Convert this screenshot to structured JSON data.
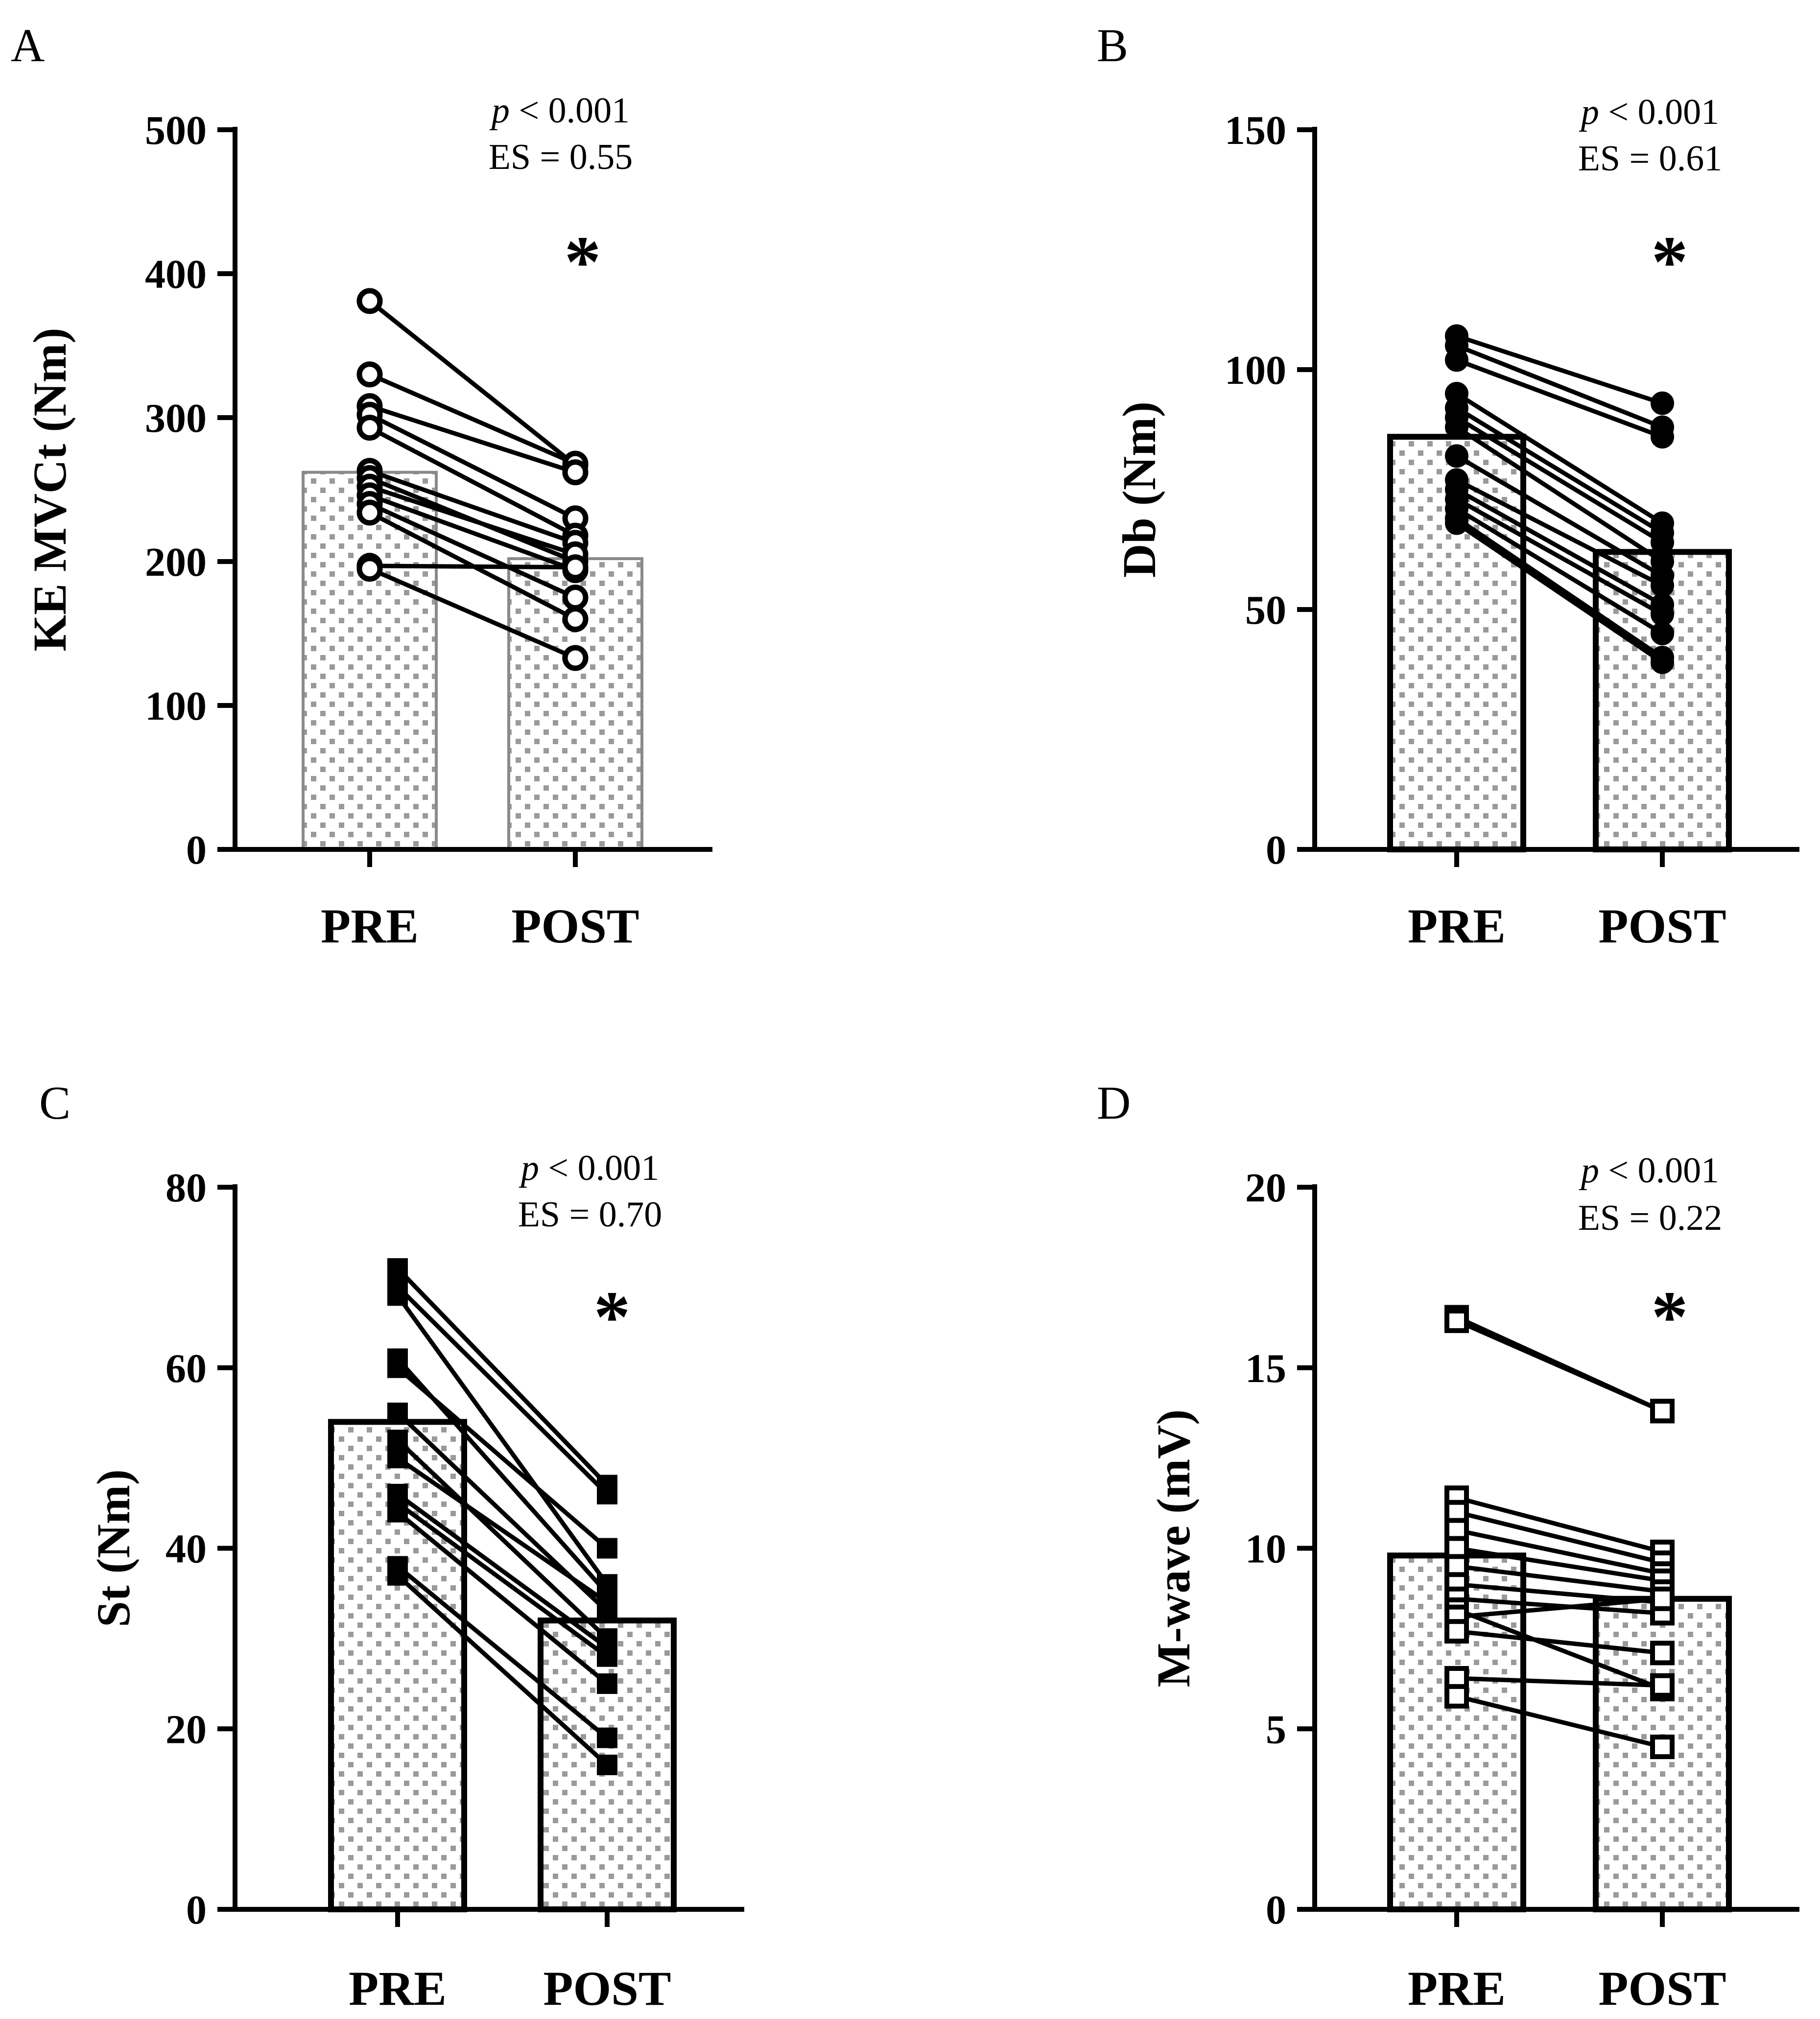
{
  "chart_data": [
    {
      "panel": "A",
      "type": "bar",
      "title": "",
      "xlabel": "",
      "ylabel": "KE MVCt (Nm)",
      "categories": [
        "PRE",
        "POST"
      ],
      "means": [
        262,
        202
      ],
      "ylim": [
        0,
        500
      ],
      "yticks": [
        0,
        100,
        200,
        300,
        400,
        500
      ],
      "marker": "open-circle",
      "bar_style": "grey",
      "annotation": {
        "p_symbol": "p",
        "p_text": " < 0.001",
        "es_text": "ES = 0.55",
        "sig": "*"
      },
      "pairs": [
        [
          381,
          267
        ],
        [
          330,
          268
        ],
        [
          308,
          262
        ],
        [
          302,
          230
        ],
        [
          293,
          218
        ],
        [
          263,
          213
        ],
        [
          258,
          200
        ],
        [
          252,
          205
        ],
        [
          246,
          194
        ],
        [
          240,
          175
        ],
        [
          234,
          160
        ],
        [
          197,
          196
        ],
        [
          195,
          133
        ]
      ]
    },
    {
      "panel": "B",
      "type": "bar",
      "title": "",
      "xlabel": "",
      "ylabel": "Db (Nm)",
      "categories": [
        "PRE",
        "POST"
      ],
      "means": [
        86,
        62
      ],
      "ylim": [
        0,
        150
      ],
      "yticks": [
        0,
        50,
        100,
        150
      ],
      "marker": "filled-circle",
      "bar_style": "black",
      "annotation": {
        "p_symbol": "p",
        "p_text": " < 0.001",
        "es_text": "ES = 0.61",
        "sig": "*"
      },
      "pairs": [
        [
          107,
          93
        ],
        [
          105,
          88
        ],
        [
          102,
          86
        ],
        [
          95,
          68
        ],
        [
          92,
          66
        ],
        [
          90,
          64
        ],
        [
          88,
          60
        ],
        [
          82,
          57
        ],
        [
          77,
          55
        ],
        [
          75,
          51
        ],
        [
          73,
          49
        ],
        [
          71,
          45
        ],
        [
          69,
          40
        ],
        [
          68,
          39
        ]
      ]
    },
    {
      "panel": "C",
      "type": "bar",
      "title": "",
      "xlabel": "",
      "ylabel": "St (Nm)",
      "categories": [
        "PRE",
        "POST"
      ],
      "means": [
        54,
        32
      ],
      "ylim": [
        0,
        80
      ],
      "yticks": [
        0,
        20,
        40,
        60,
        80
      ],
      "marker": "filled-square",
      "bar_style": "black",
      "annotation": {
        "p_symbol": "p",
        "p_text": " < 0.001",
        "es_text": "ES = 0.70",
        "sig": "*"
      },
      "pairs": [
        [
          71,
          47
        ],
        [
          69,
          46
        ],
        [
          68,
          36
        ],
        [
          61,
          35
        ],
        [
          60,
          40
        ],
        [
          55,
          33
        ],
        [
          52,
          30
        ],
        [
          50,
          34
        ],
        [
          46,
          29
        ],
        [
          45,
          28
        ],
        [
          44,
          25
        ],
        [
          38,
          19
        ],
        [
          37,
          16
        ]
      ]
    },
    {
      "panel": "D",
      "type": "bar",
      "title": "",
      "xlabel": "",
      "ylabel": "M-wave (mV)",
      "categories": [
        "PRE",
        "POST"
      ],
      "means": [
        9.8,
        8.6
      ],
      "ylim": [
        0,
        20
      ],
      "yticks": [
        0,
        5,
        10,
        15,
        20
      ],
      "marker": "open-square",
      "bar_style": "black",
      "annotation": {
        "p_symbol": "p",
        "p_text": " < 0.001",
        "es_text": "ES = 0.22",
        "sig": "*"
      },
      "pairs": [
        [
          16.4,
          13.8
        ],
        [
          16.3,
          13.8
        ],
        [
          11.4,
          9.9
        ],
        [
          11.0,
          9.6
        ],
        [
          10.5,
          9.3
        ],
        [
          10.0,
          9.1
        ],
        [
          9.5,
          8.8
        ],
        [
          9.0,
          8.5
        ],
        [
          8.6,
          8.2
        ],
        [
          8.3,
          6.1
        ],
        [
          8.1,
          8.6
        ],
        [
          7.7,
          7.1
        ],
        [
          6.4,
          6.2
        ],
        [
          5.9,
          4.5
        ]
      ]
    }
  ]
}
